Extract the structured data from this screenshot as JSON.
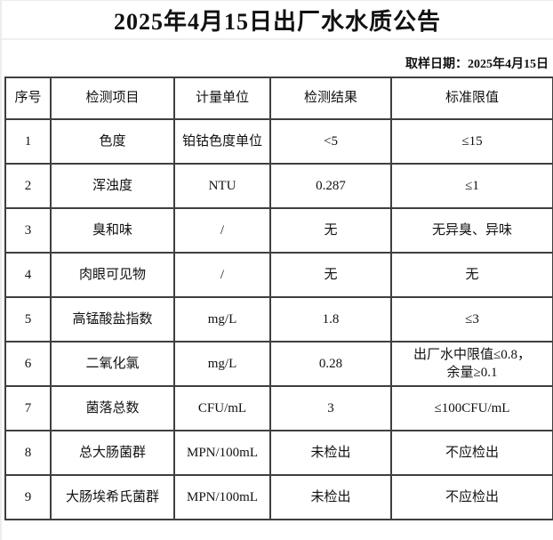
{
  "title": "2025年4月15日出厂水水质公告",
  "sample_date": "取样日期：2025年4月15日",
  "table": {
    "headers": [
      "序号",
      "检测项目",
      "计量单位",
      "检测结果",
      "标准限值"
    ],
    "rows": [
      [
        "1",
        "色度",
        "铂钴色度单位",
        "<5",
        "≤15"
      ],
      [
        "2",
        "浑浊度",
        "NTU",
        "0.287",
        "≤1"
      ],
      [
        "3",
        "臭和味",
        "/",
        "无",
        "无异臭、异味"
      ],
      [
        "4",
        "肉眼可见物",
        "/",
        "无",
        "无"
      ],
      [
        "5",
        "高锰酸盐指数",
        "mg/L",
        "1.8",
        "≤3"
      ],
      [
        "6",
        "二氧化氯",
        "mg/L",
        "0.28",
        "出厂水中限值≤0.8，\n余量≥0.1"
      ],
      [
        "7",
        "菌落总数",
        "CFU/mL",
        "3",
        "≤100CFU/mL"
      ],
      [
        "8",
        "总大肠菌群",
        "MPN/100mL",
        "未检出",
        "不应检出"
      ],
      [
        "9",
        "大肠埃希氏菌群",
        "MPN/100mL",
        "未检出",
        "不应检出"
      ]
    ]
  },
  "colors": {
    "grid_dark": "#3f3f3f",
    "grid_light": "#ececec",
    "text": "#111111",
    "background": "#ffffff"
  }
}
